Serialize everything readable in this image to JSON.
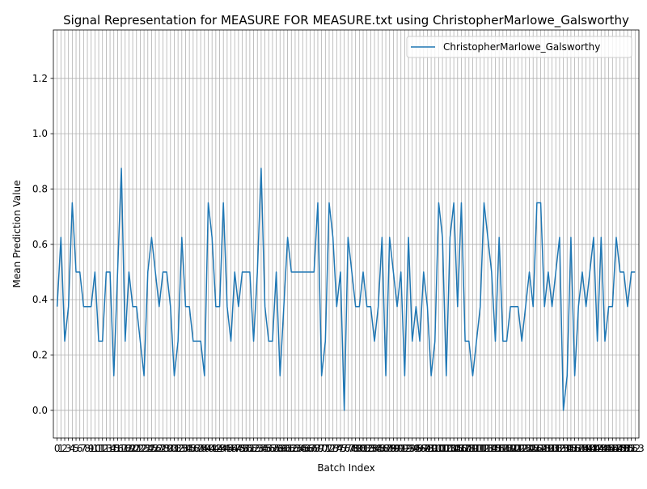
{
  "chart_data": {
    "type": "line",
    "title": "Signal Representation for MEASURE FOR MEASURE.txt using ChristopherMarlowe_Galsworthy",
    "xlabel": "Batch Index",
    "ylabel": "Mean Prediction Value",
    "ylim": [
      -0.1,
      1.375
    ],
    "xlim": [
      -1,
      154
    ],
    "yticks": [
      0.0,
      0.2,
      0.4,
      0.6,
      0.8,
      1.0,
      1.2
    ],
    "ytick_labels": [
      "0.0",
      "0.2",
      "0.4",
      "0.6",
      "0.8",
      "1.0",
      "1.2"
    ],
    "grid": true,
    "legend_position": "top-right",
    "series": [
      {
        "name": "ChristopherMarlowe_Galsworthy",
        "color": "#1f77b4",
        "x": [
          0,
          1,
          2,
          3,
          4,
          5,
          6,
          7,
          8,
          9,
          10,
          11,
          12,
          13,
          14,
          15,
          16,
          17,
          18,
          19,
          20,
          21,
          22,
          23,
          24,
          25,
          26,
          27,
          28,
          29,
          30,
          31,
          32,
          33,
          34,
          35,
          36,
          37,
          38,
          39,
          40,
          41,
          42,
          43,
          44,
          45,
          46,
          47,
          48,
          49,
          50,
          51,
          52,
          53,
          54,
          55,
          56,
          57,
          58,
          59,
          60,
          61,
          62,
          63,
          64,
          65,
          66,
          67,
          68,
          69,
          70,
          71,
          72,
          73,
          74,
          75,
          76,
          77,
          78,
          79,
          80,
          81,
          82,
          83,
          84,
          85,
          86,
          87,
          88,
          89,
          90,
          91,
          92,
          93,
          94,
          95,
          96,
          97,
          98,
          99,
          100,
          101,
          102,
          103,
          104,
          105,
          106,
          107,
          108,
          109,
          110,
          111,
          112,
          113,
          114,
          115,
          116,
          117,
          118,
          119,
          120,
          121,
          122,
          123,
          124,
          125,
          126,
          127,
          128,
          129,
          130,
          131,
          132,
          133,
          134,
          135,
          136,
          137,
          138,
          139,
          140,
          141,
          142,
          143,
          144,
          145,
          146,
          147,
          148,
          149,
          150,
          151,
          152,
          153
        ],
        "values": [
          0.375,
          0.625,
          0.25,
          0.375,
          0.75,
          0.5,
          0.5,
          0.375,
          0.375,
          0.375,
          0.5,
          0.25,
          0.25,
          0.5,
          0.5,
          0.125,
          0.5,
          0.875,
          0.25,
          0.5,
          0.375,
          0.375,
          0.25,
          0.125,
          0.5,
          0.625,
          0.5,
          0.375,
          0.5,
          0.5,
          0.375,
          0.125,
          0.25,
          0.625,
          0.375,
          0.375,
          0.25,
          0.25,
          0.25,
          0.125,
          0.75,
          0.625,
          0.375,
          0.375,
          0.75,
          0.375,
          0.25,
          0.5,
          0.375,
          0.5,
          0.5,
          0.5,
          0.25,
          0.5,
          0.875,
          0.375,
          0.25,
          0.25,
          0.5,
          0.125,
          0.375,
          0.625,
          0.5,
          0.5,
          0.5,
          0.5,
          0.5,
          0.5,
          0.5,
          0.75,
          0.125,
          0.25,
          0.75,
          0.625,
          0.375,
          0.5,
          0.0,
          0.625,
          0.5,
          0.375,
          0.375,
          0.5,
          0.375,
          0.375,
          0.25,
          0.375,
          0.625,
          0.125,
          0.625,
          0.5,
          0.375,
          0.5,
          0.125,
          0.625,
          0.25,
          0.375,
          0.25,
          0.5,
          0.375,
          0.125,
          0.25,
          0.75,
          0.625,
          0.125,
          0.625,
          0.75,
          0.375,
          0.75,
          0.25,
          0.25,
          0.125,
          0.25,
          0.375,
          0.75,
          0.625,
          0.5,
          0.25,
          0.625,
          0.25,
          0.25,
          0.375,
          0.375,
          0.375,
          0.25,
          0.375,
          0.5,
          0.375,
          0.75,
          0.75,
          0.375,
          0.5,
          0.375,
          0.5,
          0.625,
          0.0,
          0.125,
          0.625,
          0.125,
          0.375,
          0.5,
          0.375,
          0.5,
          0.625,
          0.25,
          0.625,
          0.25,
          0.375,
          0.375,
          0.625,
          0.5,
          0.5,
          0.375,
          0.5,
          0.5
        ]
      }
    ]
  }
}
